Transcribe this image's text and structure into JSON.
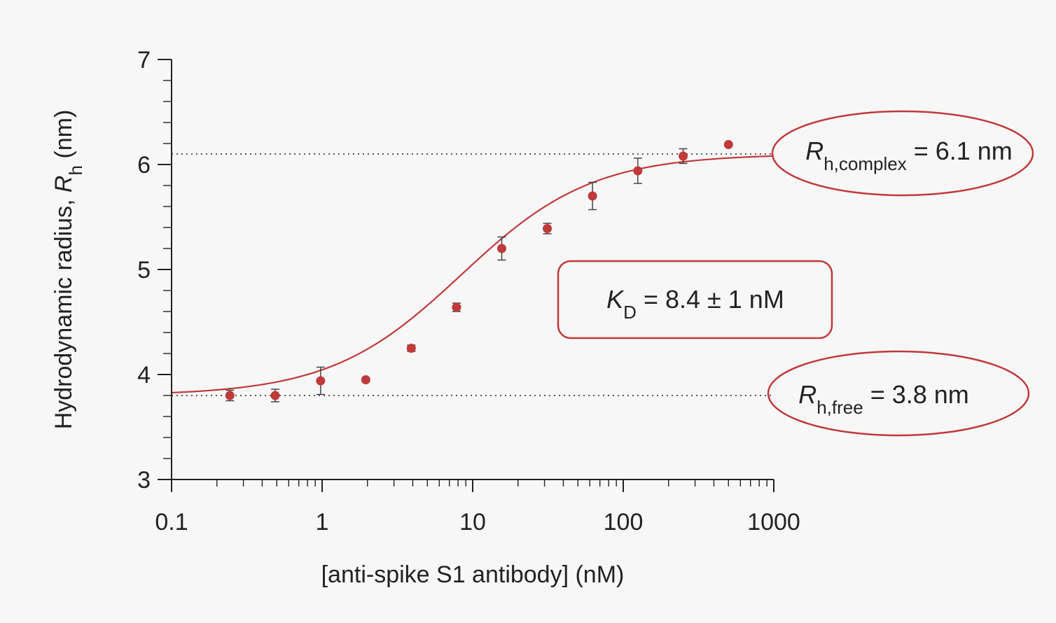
{
  "chart_data": {
    "type": "scatter",
    "xscale": "log",
    "xlim": [
      0.1,
      1000
    ],
    "ylim": [
      3,
      7
    ],
    "xlabel": "[anti-spike S1 antibody] (nM)",
    "ylabel_prefix": "Hydrodynamic radius, ",
    "ylabel_symbol": "R",
    "ylabel_sub": "h",
    "ylabel_suffix": " (nm)",
    "xticks": [
      "0.1",
      "1",
      "10",
      "100",
      "1000"
    ],
    "xtick_values": [
      0.1,
      1,
      10,
      100,
      1000
    ],
    "yticks": [
      "3",
      "4",
      "5",
      "6",
      "7"
    ],
    "ytick_values": [
      3,
      4,
      5,
      6,
      7
    ],
    "grid": false,
    "color": "#c0393b",
    "points": [
      {
        "x": 0.244,
        "y": 3.8,
        "err": 0.05
      },
      {
        "x": 0.488,
        "y": 3.8,
        "err": 0.06
      },
      {
        "x": 0.977,
        "y": 3.94,
        "err": 0.13
      },
      {
        "x": 1.95,
        "y": 3.95,
        "err": 0.0
      },
      {
        "x": 3.91,
        "y": 4.25,
        "err": 0.03
      },
      {
        "x": 7.81,
        "y": 4.64,
        "err": 0.04
      },
      {
        "x": 15.6,
        "y": 5.2,
        "err": 0.11
      },
      {
        "x": 31.3,
        "y": 5.39,
        "err": 0.05
      },
      {
        "x": 62.5,
        "y": 5.7,
        "err": 0.13
      },
      {
        "x": 125,
        "y": 5.94,
        "err": 0.12
      },
      {
        "x": 250,
        "y": 6.08,
        "err": 0.07
      },
      {
        "x": 500,
        "y": 6.19,
        "err": 0.0
      }
    ],
    "fit": {
      "model": "binding",
      "Rh_free": 3.8,
      "Rh_complex": 6.1,
      "KD": 8.4
    },
    "reference_lines": [
      3.8,
      6.1
    ],
    "annotations": {
      "complex": {
        "symbol": "R",
        "sub": "h,complex",
        "text": " = 6.1 nm"
      },
      "free": {
        "symbol": "R",
        "sub": "h,free",
        "text": " = 3.8 nm"
      },
      "kd": {
        "symbol": "K",
        "sub": "D",
        "text": " = 8.4 ± 1 nM"
      }
    }
  }
}
